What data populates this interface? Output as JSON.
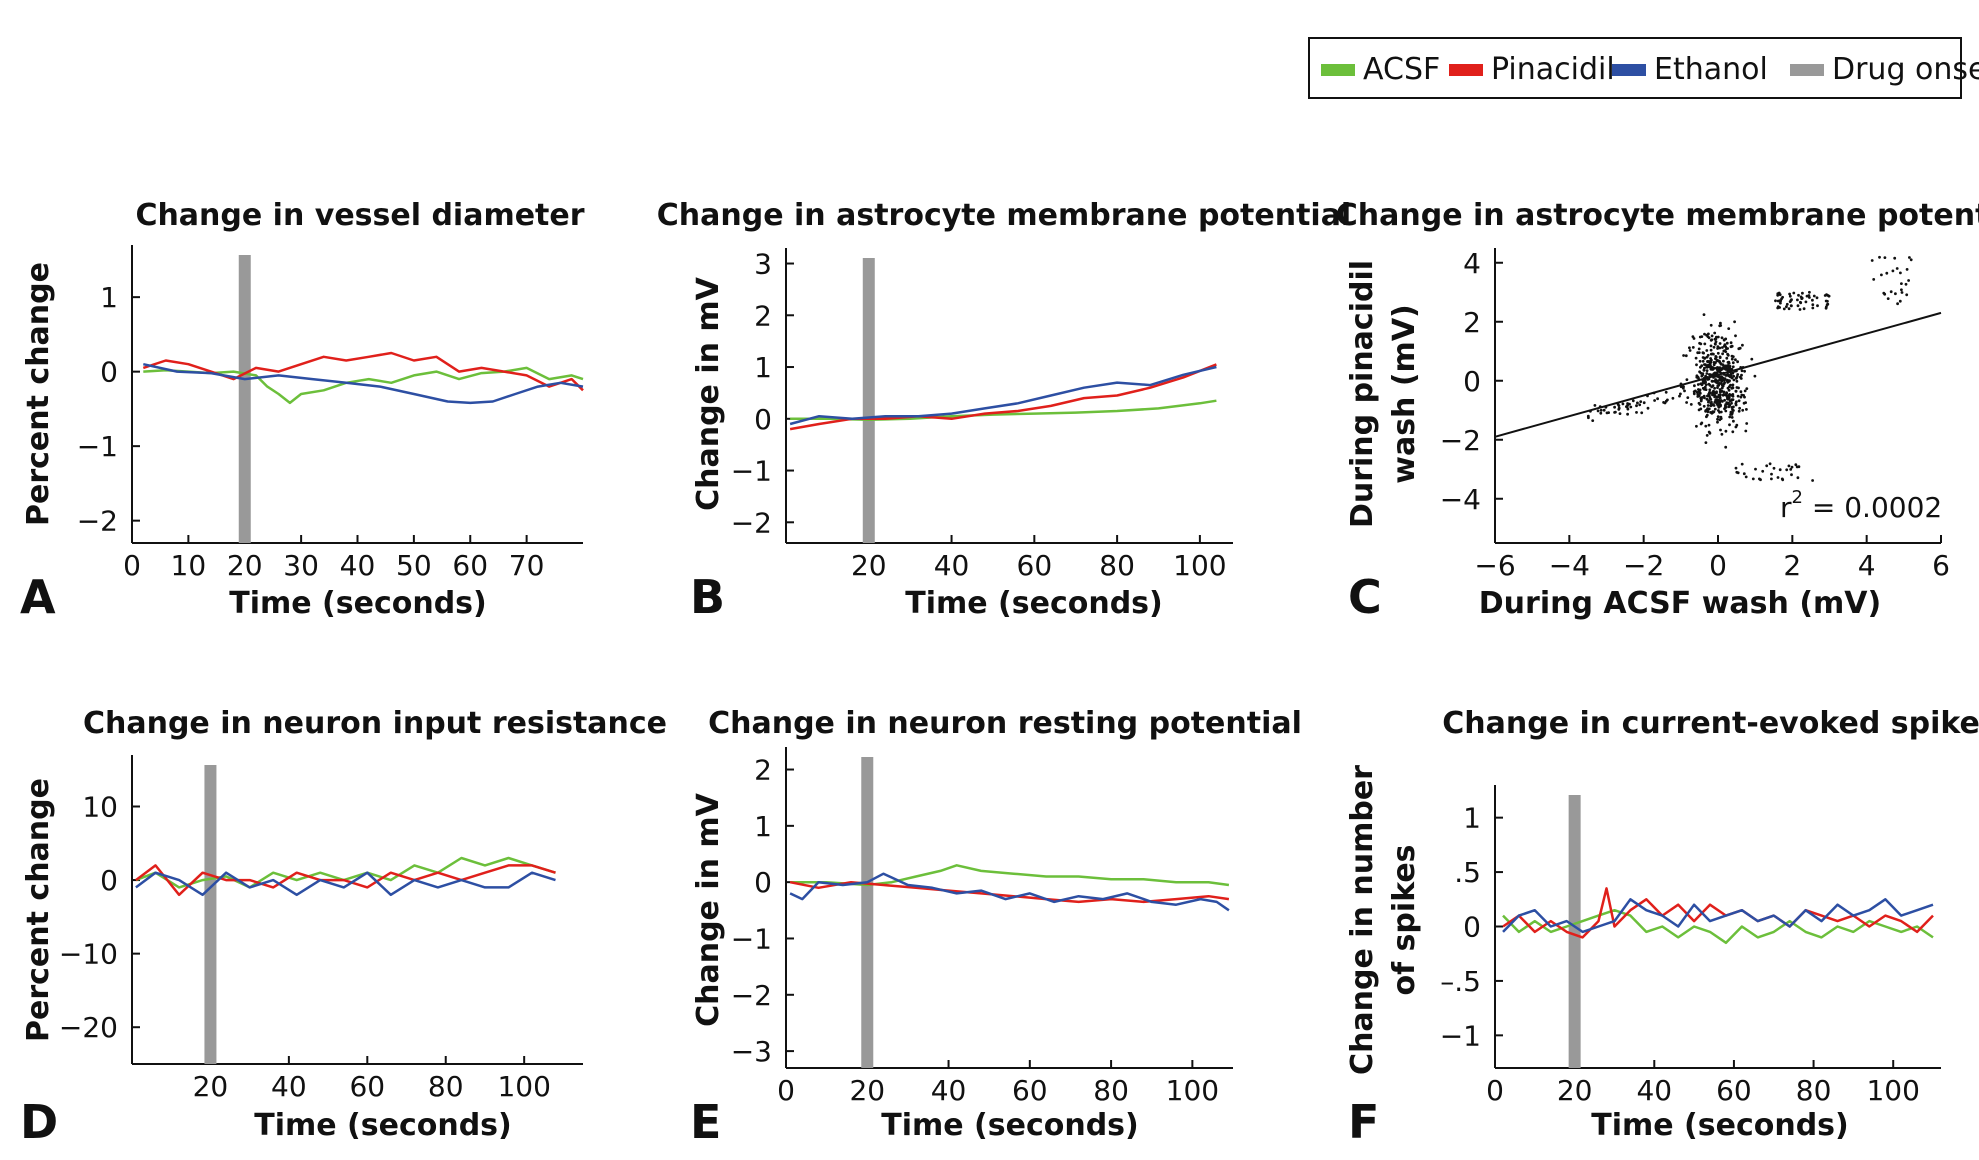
{
  "legend": {
    "placement": "top-right",
    "items": [
      {
        "label": "ACSF",
        "color": "#6cbf3b"
      },
      {
        "label": "Pinacidil",
        "color": "#e0201b"
      },
      {
        "label": "Ethanol",
        "color": "#2d4fa3"
      },
      {
        "label": "Drug onset",
        "color": "#999999"
      }
    ]
  },
  "chart_data": [
    {
      "id": "A",
      "type": "line",
      "letter": "A",
      "title": "Change in vessel diameter",
      "xlabel": "Time (seconds)",
      "ylabel": "Percent change",
      "xlim": [
        0,
        80
      ],
      "ylim": [
        -2.3,
        1.7
      ],
      "xticks": [
        0,
        10,
        20,
        30,
        40,
        50,
        60,
        70
      ],
      "yticks": [
        -2,
        -1,
        0,
        1
      ],
      "ytick_labels": [
        "−2",
        "−1",
        "0",
        "1"
      ],
      "drug_onset": 20,
      "series": [
        {
          "name": "ACSF",
          "color": "#6cbf3b",
          "x": [
            2,
            6,
            10,
            14,
            18,
            22,
            24,
            26,
            28,
            30,
            34,
            38,
            42,
            46,
            50,
            54,
            58,
            62,
            66,
            70,
            74,
            78,
            80
          ],
          "y": [
            0.0,
            0.02,
            0.0,
            -0.02,
            0.0,
            -0.05,
            -0.2,
            -0.3,
            -0.42,
            -0.3,
            -0.25,
            -0.15,
            -0.1,
            -0.15,
            -0.05,
            0.0,
            -0.1,
            -0.02,
            0.0,
            0.05,
            -0.1,
            -0.05,
            -0.1
          ]
        },
        {
          "name": "Pinacidil",
          "color": "#e0201b",
          "x": [
            2,
            6,
            10,
            14,
            18,
            22,
            26,
            30,
            34,
            38,
            42,
            46,
            50,
            54,
            58,
            62,
            66,
            70,
            74,
            78,
            80
          ],
          "y": [
            0.05,
            0.15,
            0.1,
            0.0,
            -0.1,
            0.05,
            0.0,
            0.1,
            0.2,
            0.15,
            0.2,
            0.25,
            0.15,
            0.2,
            0.0,
            0.05,
            0.0,
            -0.05,
            -0.2,
            -0.1,
            -0.25
          ]
        },
        {
          "name": "Ethanol",
          "color": "#2d4fa3",
          "x": [
            2,
            8,
            14,
            20,
            26,
            32,
            38,
            44,
            50,
            56,
            60,
            64,
            68,
            72,
            76,
            80
          ],
          "y": [
            0.1,
            0.0,
            -0.02,
            -0.1,
            -0.05,
            -0.1,
            -0.15,
            -0.2,
            -0.3,
            -0.4,
            -0.42,
            -0.4,
            -0.3,
            -0.2,
            -0.15,
            -0.2
          ]
        }
      ]
    },
    {
      "id": "B",
      "type": "line",
      "letter": "B",
      "title": "Change in astrocyte membrane potential",
      "xlabel": "Time (seconds)",
      "ylabel": "Change in mV",
      "xlim": [
        0,
        108
      ],
      "ylim": [
        -2.4,
        3.3
      ],
      "xticks": [
        20,
        40,
        60,
        80,
        100
      ],
      "yticks": [
        -2,
        -1,
        0,
        1,
        2,
        3
      ],
      "ytick_labels": [
        "−2",
        "−1",
        "0",
        "1",
        "2",
        "3"
      ],
      "drug_onset": 20,
      "series": [
        {
          "name": "ACSF",
          "color": "#6cbf3b",
          "x": [
            1,
            10,
            20,
            30,
            40,
            50,
            60,
            70,
            80,
            90,
            100,
            104
          ],
          "y": [
            0.0,
            0.0,
            -0.02,
            0.0,
            0.05,
            0.08,
            0.1,
            0.12,
            0.15,
            0.2,
            0.3,
            0.35
          ]
        },
        {
          "name": "Pinacidil",
          "color": "#e0201b",
          "x": [
            1,
            8,
            16,
            24,
            32,
            40,
            48,
            56,
            64,
            72,
            80,
            88,
            96,
            104
          ],
          "y": [
            -0.2,
            -0.1,
            0.0,
            0.0,
            0.05,
            0.0,
            0.1,
            0.15,
            0.25,
            0.4,
            0.45,
            0.6,
            0.8,
            1.05
          ]
        },
        {
          "name": "Ethanol",
          "color": "#2d4fa3",
          "x": [
            1,
            8,
            16,
            24,
            32,
            40,
            48,
            56,
            64,
            72,
            80,
            88,
            96,
            104
          ],
          "y": [
            -0.1,
            0.05,
            0.0,
            0.05,
            0.05,
            0.1,
            0.2,
            0.3,
            0.45,
            0.6,
            0.7,
            0.65,
            0.85,
            1.0
          ]
        }
      ]
    },
    {
      "id": "C",
      "type": "scatter",
      "letter": "C",
      "title": "Change in astrocyte membrane potential",
      "xlabel": "During ACSF wash (mV)",
      "ylabel_lines": [
        "During pinacidil",
        "wash (mV)"
      ],
      "xlim": [
        -6,
        6
      ],
      "ylim": [
        -5.5,
        4.5
      ],
      "xticks": [
        -6,
        -4,
        -2,
        0,
        2,
        4,
        6
      ],
      "xtick_labels": [
        "−6",
        "−4",
        "−2",
        "0",
        "2",
        "4",
        "6"
      ],
      "yticks": [
        -4,
        -2,
        0,
        2,
        4
      ],
      "ytick_labels": [
        "−4",
        "−2",
        "0",
        "2",
        "4"
      ],
      "fit_line": {
        "x": [
          -6,
          6
        ],
        "y": [
          -1.9,
          2.3
        ]
      },
      "annotation": {
        "prefix": "r",
        "sup": "2",
        "suffix": " = 0.0002"
      },
      "point_count": 700
    },
    {
      "id": "D",
      "type": "line",
      "letter": "D",
      "title": "Change in neuron input resistance",
      "xlabel": "Time (seconds)",
      "ylabel": "Percent change",
      "xlim": [
        0,
        115
      ],
      "ylim": [
        -25,
        17
      ],
      "xticks": [
        20,
        40,
        60,
        80,
        100
      ],
      "yticks": [
        -20,
        -10,
        0,
        10
      ],
      "ytick_labels": [
        "−20",
        "−10",
        "0",
        "10"
      ],
      "drug_onset": 20,
      "series": [
        {
          "name": "ACSF",
          "color": "#6cbf3b",
          "x": [
            1,
            6,
            12,
            18,
            24,
            30,
            36,
            42,
            48,
            54,
            60,
            66,
            72,
            78,
            84,
            90,
            96,
            102,
            108
          ],
          "y": [
            0,
            1,
            -1,
            0,
            0.5,
            -1,
            1,
            0,
            1,
            0,
            1,
            0,
            2,
            1,
            3,
            2,
            3,
            2,
            1
          ]
        },
        {
          "name": "Pinacidil",
          "color": "#e0201b",
          "x": [
            1,
            6,
            12,
            18,
            24,
            30,
            36,
            42,
            48,
            54,
            60,
            66,
            72,
            78,
            84,
            90,
            96,
            102,
            108
          ],
          "y": [
            0,
            2,
            -2,
            1,
            0,
            0,
            -1,
            1,
            0,
            0,
            -1,
            1,
            0,
            1,
            0,
            1,
            2,
            2,
            1
          ]
        },
        {
          "name": "Ethanol",
          "color": "#2d4fa3",
          "x": [
            1,
            6,
            12,
            18,
            24,
            30,
            36,
            42,
            48,
            54,
            60,
            66,
            72,
            78,
            84,
            90,
            96,
            102,
            108
          ],
          "y": [
            -1,
            1,
            0,
            -2,
            1,
            -1,
            0,
            -2,
            0,
            -1,
            1,
            -2,
            0,
            -1,
            0,
            -1,
            -1,
            1,
            0
          ]
        }
      ]
    },
    {
      "id": "E",
      "type": "line",
      "letter": "E",
      "title": "Change in neuron resting potential",
      "xlabel": "Time (seconds)",
      "ylabel": "Change in mV",
      "xlim": [
        0,
        110
      ],
      "ylim": [
        -3.3,
        2.4
      ],
      "xticks": [
        0,
        20,
        40,
        60,
        80,
        100
      ],
      "yticks": [
        -3,
        -2,
        -1,
        0,
        1,
        2
      ],
      "ytick_labels": [
        "−3",
        "−2",
        "−1",
        "0",
        "1",
        "2"
      ],
      "drug_onset": 20,
      "series": [
        {
          "name": "ACSF",
          "color": "#6cbf3b",
          "x": [
            1,
            10,
            20,
            26,
            32,
            38,
            42,
            48,
            56,
            64,
            72,
            80,
            88,
            96,
            104,
            109
          ],
          "y": [
            0.0,
            0.0,
            -0.05,
            0.0,
            0.1,
            0.2,
            0.3,
            0.2,
            0.15,
            0.1,
            0.1,
            0.05,
            0.05,
            0.0,
            0.0,
            -0.05
          ]
        },
        {
          "name": "Pinacidil",
          "color": "#e0201b",
          "x": [
            1,
            8,
            16,
            24,
            32,
            40,
            48,
            56,
            64,
            72,
            80,
            88,
            96,
            104,
            109
          ],
          "y": [
            0.0,
            -0.1,
            0.0,
            -0.05,
            -0.1,
            -0.15,
            -0.2,
            -0.25,
            -0.3,
            -0.35,
            -0.3,
            -0.35,
            -0.3,
            -0.25,
            -0.3
          ]
        },
        {
          "name": "Ethanol",
          "color": "#2d4fa3",
          "x": [
            1,
            4,
            8,
            14,
            20,
            24,
            30,
            36,
            42,
            48,
            54,
            60,
            66,
            72,
            78,
            84,
            90,
            96,
            102,
            106,
            109
          ],
          "y": [
            -0.2,
            -0.3,
            0.0,
            -0.05,
            0.0,
            0.15,
            -0.05,
            -0.1,
            -0.2,
            -0.15,
            -0.3,
            -0.2,
            -0.35,
            -0.25,
            -0.3,
            -0.2,
            -0.35,
            -0.4,
            -0.3,
            -0.35,
            -0.5
          ]
        }
      ]
    },
    {
      "id": "F",
      "type": "line",
      "letter": "F",
      "title": "Change in current-evoked spikes",
      "xlabel": "Time (seconds)",
      "ylabel_lines": [
        "Change in number",
        "of spikes"
      ],
      "xlim": [
        0,
        112
      ],
      "ylim": [
        -1.3,
        1.3
      ],
      "xticks": [
        0,
        20,
        40,
        60,
        80,
        100
      ],
      "yticks": [
        -1,
        -0.5,
        0,
        0.5,
        1
      ],
      "ytick_labels": [
        "−1",
        "–.5",
        "0",
        ".5",
        "1"
      ],
      "drug_onset": 20,
      "series": [
        {
          "name": "ACSF",
          "color": "#6cbf3b",
          "x": [
            2,
            6,
            10,
            14,
            18,
            22,
            26,
            30,
            34,
            38,
            42,
            46,
            50,
            54,
            58,
            62,
            66,
            70,
            74,
            78,
            82,
            86,
            90,
            94,
            98,
            102,
            106,
            110
          ],
          "y": [
            0.1,
            -0.05,
            0.05,
            -0.05,
            0.0,
            0.05,
            0.1,
            0.15,
            0.1,
            -0.05,
            0.0,
            -0.1,
            0.0,
            -0.05,
            -0.15,
            0.0,
            -0.1,
            -0.05,
            0.05,
            -0.05,
            -0.1,
            0.0,
            -0.05,
            0.05,
            0.0,
            -0.05,
            0.0,
            -0.1
          ]
        },
        {
          "name": "Pinacidil",
          "color": "#e0201b",
          "x": [
            2,
            6,
            10,
            14,
            18,
            22,
            26,
            28,
            30,
            34,
            38,
            42,
            46,
            50,
            54,
            58,
            62,
            66,
            70,
            74,
            78,
            82,
            86,
            90,
            94,
            98,
            102,
            106,
            110
          ],
          "y": [
            0.0,
            0.1,
            -0.05,
            0.05,
            -0.05,
            -0.1,
            0.05,
            0.35,
            0.0,
            0.15,
            0.25,
            0.1,
            0.2,
            0.05,
            0.2,
            0.1,
            0.15,
            0.05,
            0.1,
            0.0,
            0.15,
            0.1,
            0.05,
            0.1,
            0.0,
            0.1,
            0.05,
            -0.05,
            0.1
          ]
        },
        {
          "name": "Ethanol",
          "color": "#2d4fa3",
          "x": [
            2,
            6,
            10,
            14,
            18,
            22,
            26,
            30,
            34,
            38,
            42,
            46,
            50,
            54,
            58,
            62,
            66,
            70,
            74,
            78,
            82,
            86,
            90,
            94,
            98,
            102,
            106,
            110
          ],
          "y": [
            -0.05,
            0.1,
            0.15,
            0.0,
            0.05,
            -0.05,
            0.0,
            0.05,
            0.25,
            0.15,
            0.1,
            0.0,
            0.2,
            0.05,
            0.1,
            0.15,
            0.05,
            0.1,
            0.0,
            0.15,
            0.05,
            0.2,
            0.1,
            0.15,
            0.25,
            0.1,
            0.15,
            0.2
          ]
        }
      ]
    }
  ]
}
